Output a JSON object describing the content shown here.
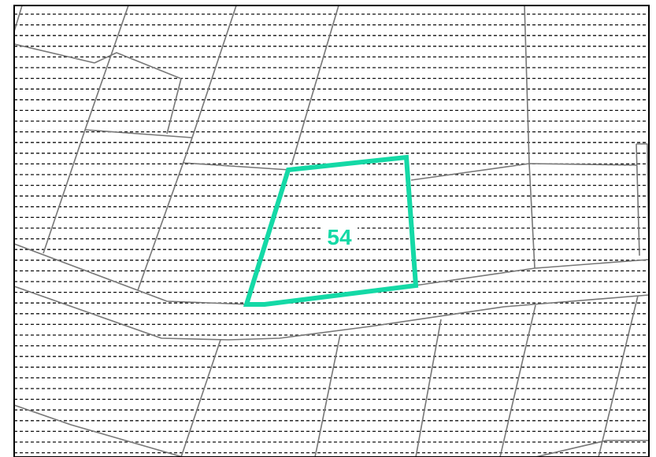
{
  "map": {
    "highlighted_parcel": {
      "number": "54",
      "highlight_color": "#14d9a6"
    },
    "colors": {
      "hatch": "#111111",
      "parcel_border": "#777777",
      "frame": "#000000",
      "label_halo": "#ffffff"
    }
  }
}
